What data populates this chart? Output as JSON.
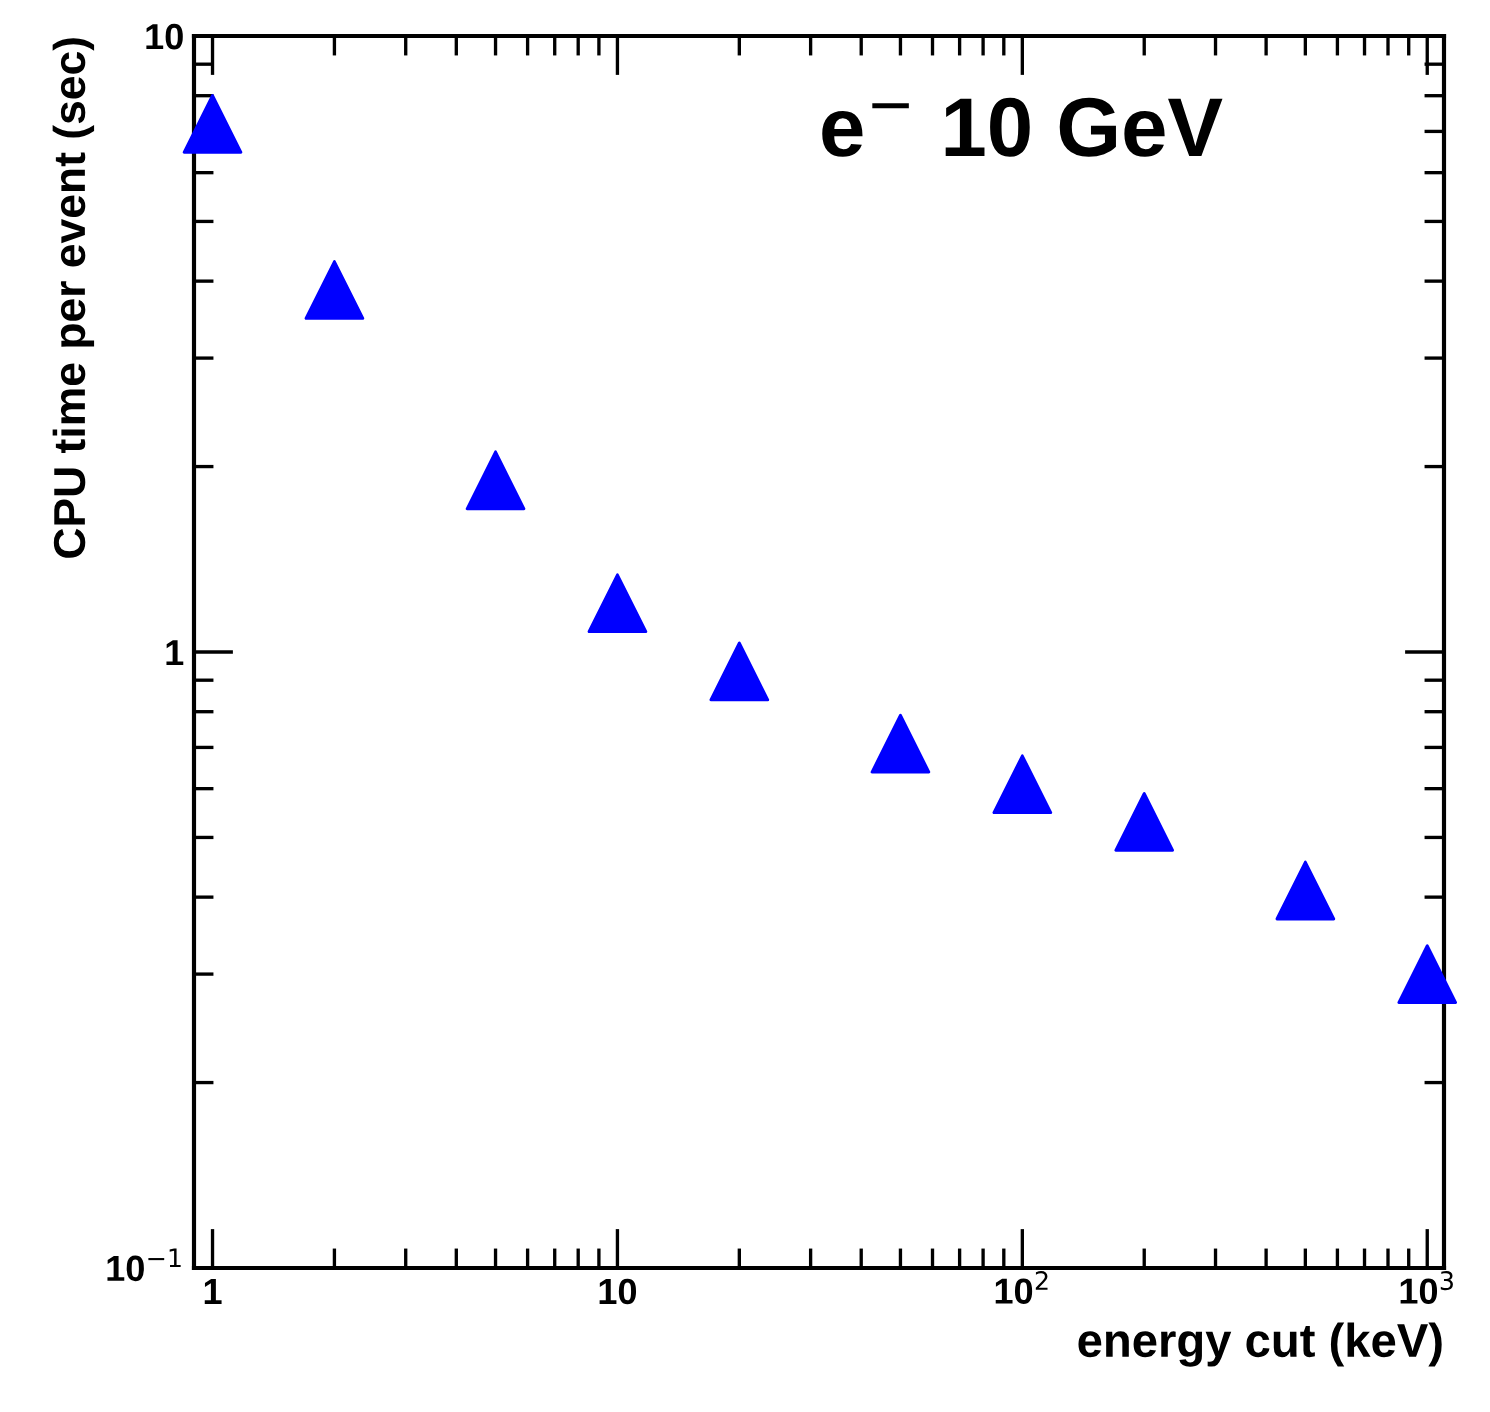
{
  "chart_data": {
    "type": "scatter",
    "xlabel": "energy cut (keV)",
    "ylabel": "CPU time per event (sec)",
    "annotations": [
      "e$^{−}$ 10 GeV"
    ],
    "x": [
      1,
      2,
      5,
      10,
      20,
      50,
      100,
      200,
      500,
      1000
    ],
    "series": [
      {
        "color": "#0000ff",
        "values": [
          7.2,
          3.87,
          1.9,
          1.2,
          0.93,
          0.71,
          0.61,
          0.53,
          0.41,
          0.3
        ]
      }
    ],
    "log": "xy",
    "xlim": [
      0.9,
      1100
    ],
    "ylim": [
      0.1,
      10
    ],
    "xticks": [
      1,
      10,
      {
        "value": 100,
        "label": "10$^{2}$"
      },
      {
        "value": 1000,
        "label": "10$^{3}$"
      }
    ],
    "yticks": [
      {
        "value": 0.1,
        "label": "10$^{−1}$"
      },
      1,
      10
    ],
    "marker": "triangle",
    "grid": false
  }
}
